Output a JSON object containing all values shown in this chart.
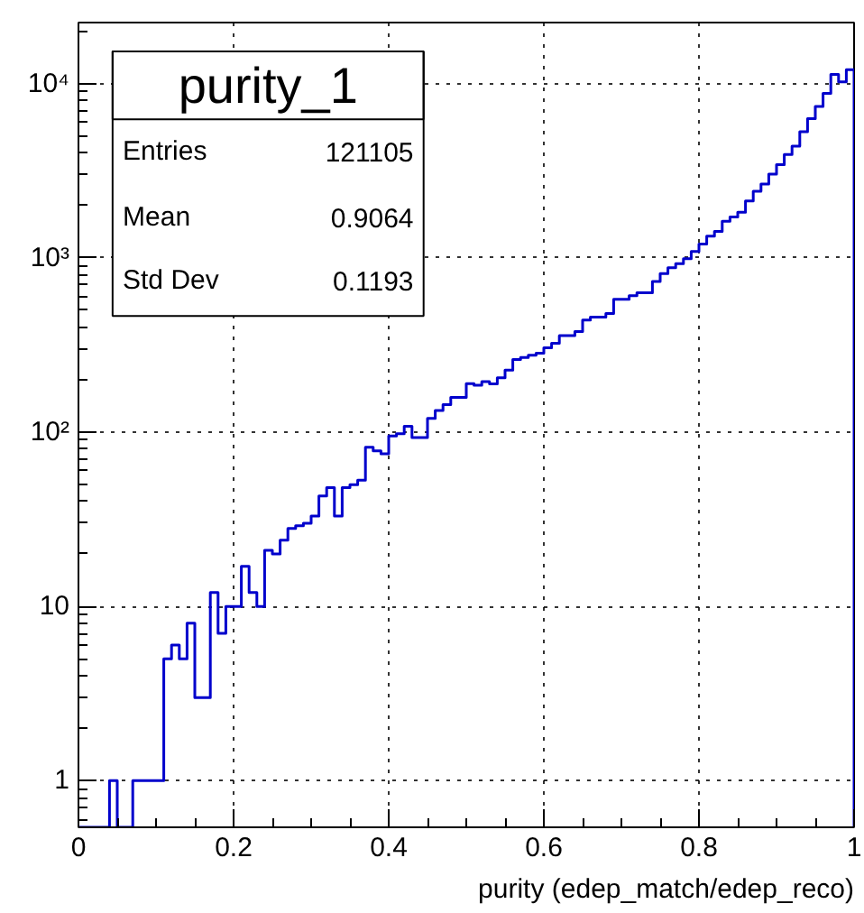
{
  "chart_data": {
    "type": "histogram",
    "title": "purity_1",
    "xlabel": "purity (edep_match/edep_reco)",
    "bins": [
      0,
      0.01,
      0.02,
      0.03,
      0.04,
      0.05,
      0.06,
      0.07,
      0.08,
      0.09,
      0.1,
      0.11,
      0.12,
      0.13,
      0.14,
      0.15,
      0.16,
      0.17,
      0.18,
      0.19,
      0.2,
      0.21,
      0.22,
      0.23,
      0.24,
      0.25,
      0.26,
      0.27,
      0.28,
      0.29,
      0.3,
      0.31,
      0.32,
      0.33,
      0.34,
      0.35,
      0.36,
      0.37,
      0.38,
      0.39,
      0.4,
      0.41,
      0.42,
      0.43,
      0.44,
      0.45,
      0.46,
      0.47,
      0.48,
      0.49,
      0.5,
      0.51,
      0.52,
      0.53,
      0.54,
      0.55,
      0.56,
      0.57,
      0.58,
      0.59,
      0.6,
      0.61,
      0.62,
      0.63,
      0.64,
      0.65,
      0.66,
      0.67,
      0.68,
      0.69,
      0.7,
      0.71,
      0.72,
      0.73,
      0.74,
      0.75,
      0.76,
      0.77,
      0.78,
      0.79,
      0.8,
      0.81,
      0.82,
      0.83,
      0.84,
      0.85,
      0.86,
      0.87,
      0.88,
      0.89,
      0.9,
      0.91,
      0.92,
      0.93,
      0.94,
      0.95,
      0.96,
      0.97,
      0.98,
      0.99,
      1
    ],
    "values": [
      null,
      null,
      null,
      null,
      1,
      null,
      null,
      1,
      1,
      1,
      1,
      5,
      6,
      5,
      8,
      3,
      3,
      12,
      7,
      10,
      10,
      17,
      12,
      10,
      21,
      20,
      24,
      28,
      29,
      30,
      33,
      43,
      48,
      33,
      48,
      50,
      53,
      82,
      78,
      75,
      95,
      98,
      108,
      93,
      93,
      120,
      133,
      144,
      158,
      158,
      190,
      186,
      195,
      189,
      205,
      227,
      261,
      268,
      276,
      284,
      305,
      323,
      358,
      358,
      378,
      440,
      457,
      457,
      479,
      578,
      578,
      607,
      631,
      631,
      733,
      813,
      879,
      927,
      988,
      1087,
      1202,
      1334,
      1419,
      1623,
      1714,
      1827,
      2120,
      2409,
      2650,
      3020,
      3430,
      3920,
      4370,
      5300,
      6300,
      7400,
      8800,
      11300,
      10240,
      12000
    ],
    "color": "#0000cc",
    "xlim": [
      0,
      1
    ],
    "ylim": [
      0.54,
      22400
    ],
    "xticks": [
      0,
      0.2,
      0.4,
      0.6,
      0.8,
      1
    ],
    "yticks": [
      1,
      10,
      {
        "value": 100,
        "label": "10²"
      },
      {
        "value": 1000,
        "label": "10³"
      },
      {
        "value": 10000,
        "label": "10⁴"
      }
    ],
    "log": "y",
    "grid": true,
    "annotations": [
      "Entries",
      "121105",
      "Mean",
      "0.9064",
      "Std Dev",
      "0.1193"
    ]
  }
}
